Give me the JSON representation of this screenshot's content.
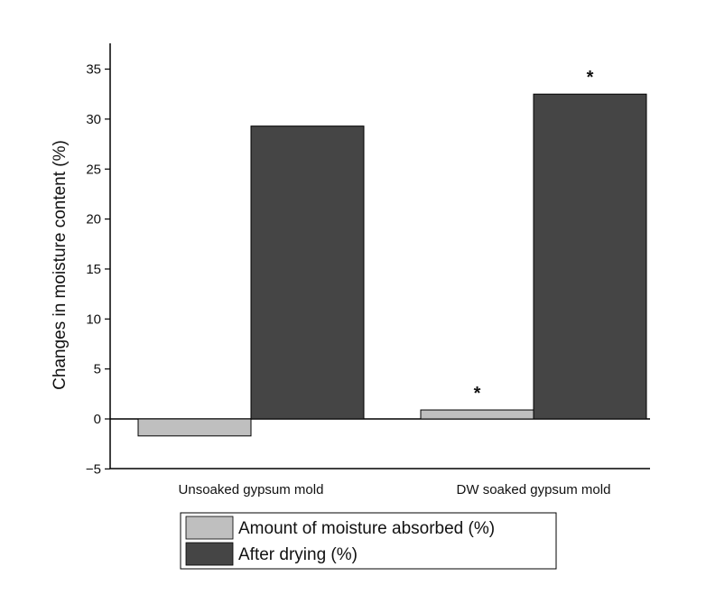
{
  "chart_data": {
    "type": "bar",
    "categories": [
      "Unsoaked gypsum mold",
      "DW soaked gypsum mold"
    ],
    "series": [
      {
        "name": "Amount of moisture absorbed (%)",
        "values": [
          -1.7,
          0.9
        ],
        "color": "#bfbfbf"
      },
      {
        "name": "After drying (%)",
        "values": [
          29.3,
          32.5
        ],
        "color": "#454545"
      }
    ],
    "ylabel": "Changes in moisture content (%)",
    "xlabel": "",
    "ylim": [
      -5,
      37.5
    ],
    "yticks": [
      -5,
      0,
      5,
      10,
      15,
      20,
      25,
      30,
      35
    ],
    "grid": false,
    "legend_placement": "bottom-center",
    "annotations": [
      {
        "text": "*",
        "category": "DW soaked gypsum mold",
        "series": "Amount of moisture absorbed (%)"
      },
      {
        "text": "*",
        "category": "DW soaked gypsum mold",
        "series": "After drying (%)"
      }
    ]
  }
}
